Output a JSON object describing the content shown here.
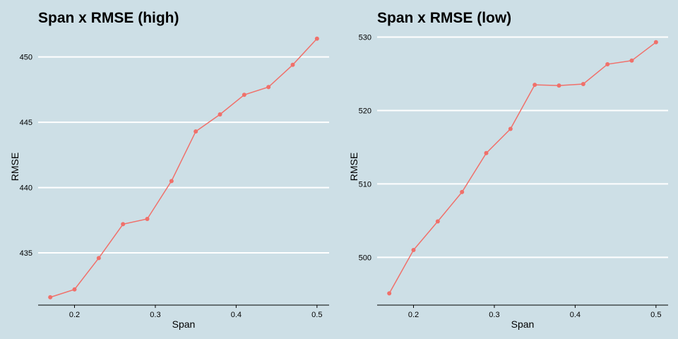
{
  "chart_data": [
    {
      "type": "line",
      "title": "Span x RMSE (high)",
      "xlabel": "Span",
      "ylabel": "RMSE",
      "xlim": [
        0.155,
        0.515
      ],
      "ylim": [
        431.0,
        452.2
      ],
      "xticks": [
        0.2,
        0.3,
        0.4,
        0.5
      ],
      "xtick_labels": [
        "0.2",
        "0.3",
        "0.4",
        "0.5"
      ],
      "yticks": [
        435,
        440,
        445,
        450
      ],
      "ytick_labels": [
        "435",
        "440",
        "445",
        "450"
      ],
      "grid": "horizontal major lines",
      "legend": "none",
      "color": "#f0706a",
      "series": [
        {
          "x": [
            0.17,
            0.2,
            0.23,
            0.26,
            0.29,
            0.32,
            0.35,
            0.38,
            0.41,
            0.44,
            0.47,
            0.5
          ],
          "y": [
            431.6,
            432.2,
            434.6,
            437.2,
            437.6,
            440.5,
            444.3,
            445.6,
            447.1,
            447.7,
            449.4,
            451.4
          ]
        }
      ]
    },
    {
      "type": "line",
      "title": "Span x RMSE (low)",
      "xlabel": "Span",
      "ylabel": "RMSE",
      "xlim": [
        0.155,
        0.515
      ],
      "ylim": [
        493.5,
        531.2
      ],
      "xticks": [
        0.2,
        0.3,
        0.4,
        0.5
      ],
      "xtick_labels": [
        "0.2",
        "0.3",
        "0.4",
        "0.5"
      ],
      "yticks": [
        500,
        510,
        520,
        530
      ],
      "ytick_labels": [
        "500",
        "510",
        "520",
        "530"
      ],
      "grid": "horizontal major lines",
      "legend": "none",
      "color": "#f0706a",
      "series": [
        {
          "x": [
            0.17,
            0.2,
            0.23,
            0.26,
            0.29,
            0.32,
            0.35,
            0.38,
            0.41,
            0.44,
            0.47,
            0.5
          ],
          "y": [
            495.1,
            501.0,
            504.9,
            508.9,
            514.2,
            517.5,
            523.5,
            523.4,
            523.6,
            526.3,
            526.8,
            529.3
          ]
        }
      ]
    }
  ]
}
